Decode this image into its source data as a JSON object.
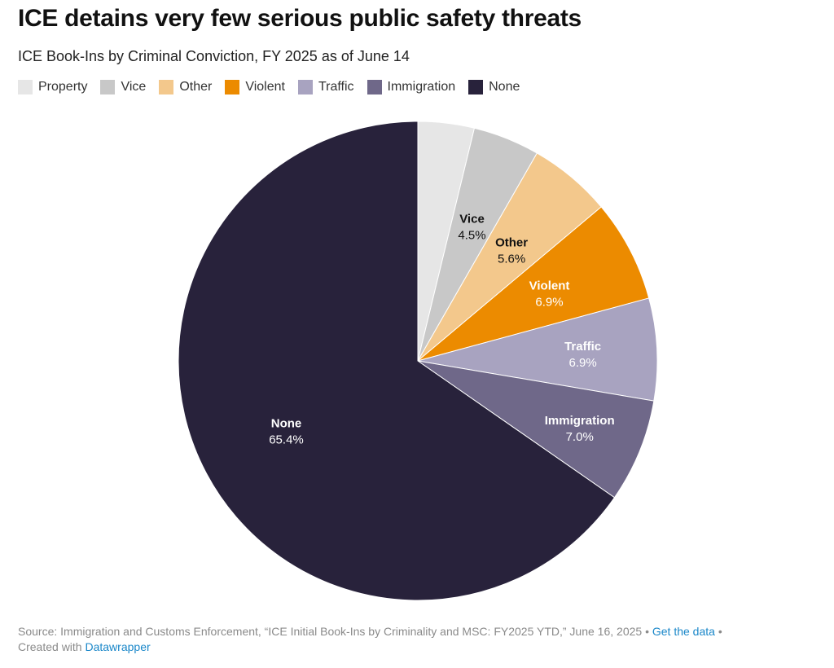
{
  "header": {
    "title": "ICE detains very few serious public safety threats",
    "subtitle": "ICE Book-Ins by Criminal Conviction, FY 2025 as of June 14"
  },
  "chart_data": {
    "type": "pie",
    "title": "ICE detains very few serious public safety threats",
    "subtitle": "ICE Book-Ins by Criminal Conviction, FY 2025 as of June 14",
    "legend_position": "top-left",
    "start": "12 o'clock, clockwise",
    "slices": [
      {
        "name": "Property",
        "value": 3.8,
        "value_label": "",
        "color": "#e6e6e6",
        "label_color": "#111111"
      },
      {
        "name": "Vice",
        "value": 4.5,
        "value_label": "4.5%",
        "color": "#c8c8c8",
        "label_color": "#111111"
      },
      {
        "name": "Other",
        "value": 5.6,
        "value_label": "5.6%",
        "color": "#f3c88c",
        "label_color": "#111111"
      },
      {
        "name": "Violent",
        "value": 6.9,
        "value_label": "6.9%",
        "color": "#ec8b00",
        "label_color": "#ffffff"
      },
      {
        "name": "Traffic",
        "value": 6.9,
        "value_label": "6.9%",
        "color": "#a8a3c0",
        "label_color": "#ffffff"
      },
      {
        "name": "Immigration",
        "value": 7.0,
        "value_label": "7.0%",
        "color": "#6f6889",
        "label_color": "#ffffff"
      },
      {
        "name": "None",
        "value": 65.4,
        "value_label": "65.4%",
        "color": "#28223b",
        "label_color": "#ffffff"
      }
    ]
  },
  "footer": {
    "source_text": "Source: Immigration and Customs Enforcement, “ICE Initial Book-Ins by Criminality and MSC: FY2025 YTD,” June 16, 2025",
    "separator": "•",
    "get_data_link": "Get the data",
    "created_with_text": "Created with",
    "datawrapper_link": "Datawrapper"
  }
}
